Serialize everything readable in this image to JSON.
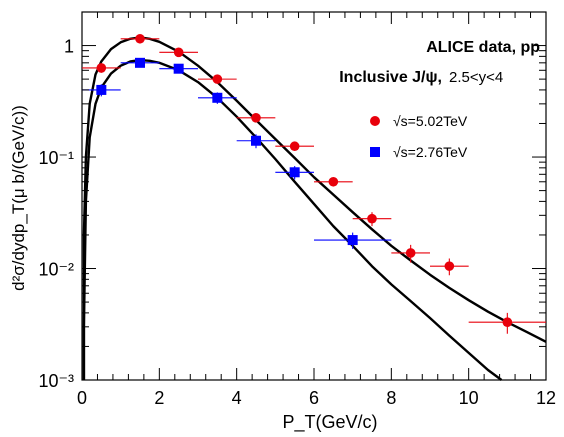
{
  "chart_data": {
    "type": "scatter",
    "title": "",
    "xlabel": "P_T(GeV/c)",
    "ylabel": "d²σ/dydp_T(μ b/(GeV/c))",
    "xlim": [
      0,
      12
    ],
    "ylim": [
      0.001,
      2
    ],
    "yscale": "log",
    "x_ticks": [
      "0",
      "2",
      "4",
      "6",
      "8",
      "10",
      "12"
    ],
    "y_ticks": [
      "10⁻³",
      "10⁻²",
      "10⁻¹",
      "1"
    ],
    "grid": false,
    "legend_position": "upper-right",
    "annotations": [
      "ALICE data, pp",
      "Inclusive J/ψ,",
      "2.5<y<4"
    ],
    "series": [
      {
        "name": "√s=5.02TeV",
        "color": "#e8000b",
        "marker": "circle",
        "points": [
          {
            "x": 0.5,
            "y": 0.63,
            "xerr": 0.5,
            "yerr_low": 0.06,
            "yerr_high": 0.06
          },
          {
            "x": 1.5,
            "y": 1.15,
            "xerr": 0.5,
            "yerr_low": 0.08,
            "yerr_high": 0.08
          },
          {
            "x": 2.5,
            "y": 0.87,
            "xerr": 0.5,
            "yerr_low": 0.06,
            "yerr_high": 0.06
          },
          {
            "x": 3.5,
            "y": 0.5,
            "xerr": 0.5,
            "yerr_low": 0.04,
            "yerr_high": 0.04
          },
          {
            "x": 4.5,
            "y": 0.225,
            "xerr": 0.5,
            "yerr_low": 0.02,
            "yerr_high": 0.02
          },
          {
            "x": 5.5,
            "y": 0.125,
            "xerr": 0.5,
            "yerr_low": 0.011,
            "yerr_high": 0.011
          },
          {
            "x": 6.5,
            "y": 0.06,
            "xerr": 0.5,
            "yerr_low": 0.005,
            "yerr_high": 0.005
          },
          {
            "x": 7.5,
            "y": 0.028,
            "xerr": 0.5,
            "yerr_low": 0.004,
            "yerr_high": 0.004
          },
          {
            "x": 8.5,
            "y": 0.0138,
            "xerr": 0.5,
            "yerr_low": 0.0025,
            "yerr_high": 0.0025
          },
          {
            "x": 9.5,
            "y": 0.0105,
            "xerr": 0.5,
            "yerr_low": 0.0018,
            "yerr_high": 0.0018
          },
          {
            "x": 11.0,
            "y": 0.0033,
            "xerr": 1.0,
            "yerr_low": 0.0007,
            "yerr_high": 0.0007
          }
        ]
      },
      {
        "name": "√s=2.76TeV",
        "color": "#0000ff",
        "marker": "square",
        "points": [
          {
            "x": 0.5,
            "y": 0.4,
            "xerr": 0.5,
            "yerr_low": 0.05,
            "yerr_high": 0.05
          },
          {
            "x": 1.5,
            "y": 0.7,
            "xerr": 0.5,
            "yerr_low": 0.06,
            "yerr_high": 0.06
          },
          {
            "x": 2.5,
            "y": 0.62,
            "xerr": 0.5,
            "yerr_low": 0.05,
            "yerr_high": 0.05
          },
          {
            "x": 3.5,
            "y": 0.34,
            "xerr": 0.5,
            "yerr_low": 0.04,
            "yerr_high": 0.04
          },
          {
            "x": 4.5,
            "y": 0.14,
            "xerr": 0.5,
            "yerr_low": 0.02,
            "yerr_high": 0.02
          },
          {
            "x": 5.5,
            "y": 0.073,
            "xerr": 0.5,
            "yerr_low": 0.01,
            "yerr_high": 0.01
          },
          {
            "x": 7.0,
            "y": 0.018,
            "xerr": 1.0,
            "yerr_low": 0.003,
            "yerr_high": 0.003
          }
        ]
      }
    ],
    "fit_curves": [
      {
        "color": "#000000",
        "points": [
          [
            0.05,
            0.02
          ],
          [
            0.1,
            0.1
          ],
          [
            0.2,
            0.3
          ],
          [
            0.35,
            0.55
          ],
          [
            0.5,
            0.72
          ],
          [
            0.75,
            0.93
          ],
          [
            1.0,
            1.07
          ],
          [
            1.25,
            1.15
          ],
          [
            1.5,
            1.18
          ],
          [
            1.75,
            1.15
          ],
          [
            2.0,
            1.08
          ],
          [
            2.5,
            0.88
          ],
          [
            3.0,
            0.66
          ],
          [
            3.5,
            0.47
          ],
          [
            4.0,
            0.32
          ],
          [
            4.5,
            0.215
          ],
          [
            5.0,
            0.145
          ],
          [
            5.5,
            0.098
          ],
          [
            6.0,
            0.066
          ],
          [
            6.5,
            0.046
          ],
          [
            7.0,
            0.032
          ],
          [
            7.5,
            0.0225
          ],
          [
            8.0,
            0.016
          ],
          [
            8.5,
            0.0118
          ],
          [
            9.0,
            0.0088
          ],
          [
            9.5,
            0.0067
          ],
          [
            10.0,
            0.0052
          ],
          [
            10.5,
            0.0041
          ],
          [
            11.0,
            0.0033
          ],
          [
            11.5,
            0.0027
          ],
          [
            12.0,
            0.0022
          ]
        ]
      },
      {
        "color": "#000000",
        "points": [
          [
            0.05,
            0.003
          ],
          [
            0.1,
            0.04
          ],
          [
            0.2,
            0.15
          ],
          [
            0.35,
            0.3
          ],
          [
            0.5,
            0.42
          ],
          [
            0.75,
            0.56
          ],
          [
            1.0,
            0.66
          ],
          [
            1.25,
            0.72
          ],
          [
            1.5,
            0.74
          ],
          [
            1.75,
            0.73
          ],
          [
            2.0,
            0.7
          ],
          [
            2.5,
            0.6
          ],
          [
            3.0,
            0.47
          ],
          [
            3.5,
            0.34
          ],
          [
            4.0,
            0.23
          ],
          [
            4.5,
            0.15
          ],
          [
            5.0,
            0.096
          ],
          [
            5.5,
            0.06
          ],
          [
            6.0,
            0.038
          ],
          [
            6.5,
            0.024
          ],
          [
            7.0,
            0.016
          ],
          [
            7.5,
            0.0105
          ],
          [
            8.0,
            0.0072
          ],
          [
            8.5,
            0.0051
          ],
          [
            9.0,
            0.0036
          ],
          [
            9.5,
            0.0025
          ],
          [
            10.0,
            0.00175
          ],
          [
            10.5,
            0.00123
          ],
          [
            10.85,
            0.001
          ]
        ]
      }
    ]
  }
}
